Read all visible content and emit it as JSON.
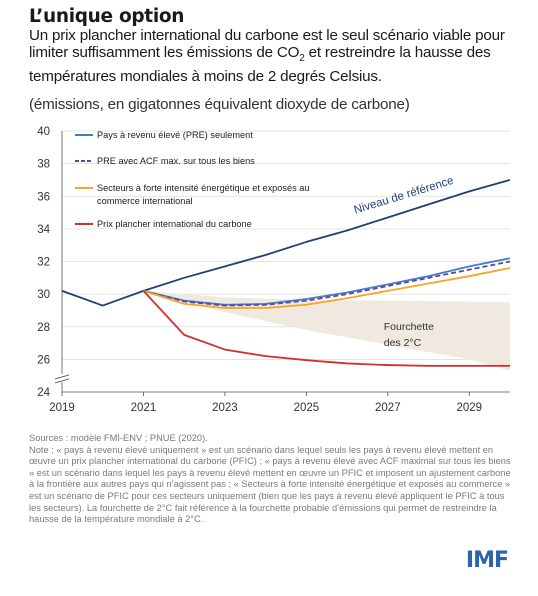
{
  "title": "L’unique option",
  "subtitle_parts": [
    "Un prix plancher international du carbone est le seul scénario viable pour limiter suffisamment les émissions de CO",
    "2",
    " et restreindre la hausse des températures mondiales à moins de 2 degrés Celsius."
  ],
  "units": "(émissions, en gigatonnes équivalent dioxyde de carbone)",
  "sources": "Sources : modèle FMI-ENV ; PNUE (2020).",
  "note": "Note : « pays à revenu élevé uniquement » est un scénario dans lequel seuls les pays à revenu élevé mettent en œuvre un prix plancher international du carbone (PFIC) ; « pays à revenu élevé avec ACF maximal sur tous les biens » est un scénario dans lequel les pays à revenu élevé mettent en œuvre un PFIC et imposent un ajustement carbone à la frontière aux autres pays qui n’agissent pas ; « Secteurs à forte intensité énergétique et exposés au commerce » est un scénario de PFIC pour ces secteurs uniquement (bien que les pays à revenu élevé appliquent le PFIC à tous les secteurs). La fourchette de 2°C fait référence à la fourchette probable d’émissions qui permet de restreindre la hausse de la température mondiale à 2°C.",
  "logo": "IMF",
  "colors": {
    "reference": "#1f3f7a",
    "pre": "#3b82c4",
    "pre_acf": "#6b3fa0",
    "sectors": "#f5a623",
    "floor": "#d32f2f",
    "band": "#efe9df"
  },
  "chart_data": {
    "type": "line",
    "ylim": [
      24,
      40
    ],
    "yticks": [
      24,
      26,
      28,
      30,
      32,
      34,
      36,
      38,
      40
    ],
    "xlim": [
      2019,
      2030
    ],
    "xticks": [
      2019,
      2021,
      2023,
      2025,
      2027,
      2029
    ],
    "axis_break": true,
    "series": [
      {
        "name": "Niveau de référence",
        "key": "reference",
        "dashed": false,
        "x": [
          2019,
          2020,
          2021,
          2022,
          2023,
          2024,
          2025,
          2026,
          2027,
          2028,
          2029,
          2030
        ],
        "y": [
          30.2,
          29.3,
          30.2,
          31.0,
          31.7,
          32.4,
          33.2,
          33.9,
          34.7,
          35.5,
          36.3,
          37.0
        ]
      },
      {
        "name": "Pays à revenu élevé (PRE) seulement",
        "key": "pre",
        "dashed": false,
        "x": [
          2021,
          2022,
          2023,
          2024,
          2025,
          2026,
          2027,
          2028,
          2029,
          2030
        ],
        "y": [
          30.2,
          29.6,
          29.35,
          29.4,
          29.7,
          30.1,
          30.6,
          31.1,
          31.7,
          32.2
        ]
      },
      {
        "name": "PRE avec ACF max. sur tous les biens",
        "key": "pre_acf",
        "dashed": true,
        "x": [
          2021,
          2022,
          2023,
          2024,
          2025,
          2026,
          2027,
          2028,
          2029,
          2030
        ],
        "y": [
          30.2,
          29.55,
          29.3,
          29.35,
          29.6,
          30.0,
          30.5,
          31.0,
          31.5,
          32.0
        ]
      },
      {
        "name": "Secteurs à forte intensité énergétique et exposés au commerce international",
        "key": "sectors",
        "dashed": false,
        "x": [
          2021,
          2022,
          2023,
          2024,
          2025,
          2026,
          2027,
          2028,
          2029,
          2030
        ],
        "y": [
          30.2,
          29.4,
          29.15,
          29.15,
          29.35,
          29.75,
          30.2,
          30.65,
          31.1,
          31.6
        ]
      },
      {
        "name": "Prix plancher international du carbone",
        "key": "floor",
        "dashed": false,
        "x": [
          2021,
          2022,
          2023,
          2024,
          2025,
          2026,
          2027,
          2028,
          2029,
          2030
        ],
        "y": [
          30.2,
          27.5,
          26.6,
          26.2,
          25.95,
          25.75,
          25.65,
          25.6,
          25.6,
          25.6
        ]
      }
    ],
    "band": {
      "name": "Fourchette des 2°C",
      "label_lines": [
        "Fourchette",
        "des 2°C"
      ],
      "x": [
        2019,
        2021,
        2023,
        2025,
        2027,
        2029,
        2030
      ],
      "upper": [
        30.2,
        30.2,
        29.8,
        29.65,
        29.6,
        29.55,
        29.5
      ],
      "lower": [
        30.2,
        30.2,
        28.9,
        27.8,
        26.9,
        26.0,
        25.3
      ]
    },
    "reference_label": "Niveau de référence"
  }
}
